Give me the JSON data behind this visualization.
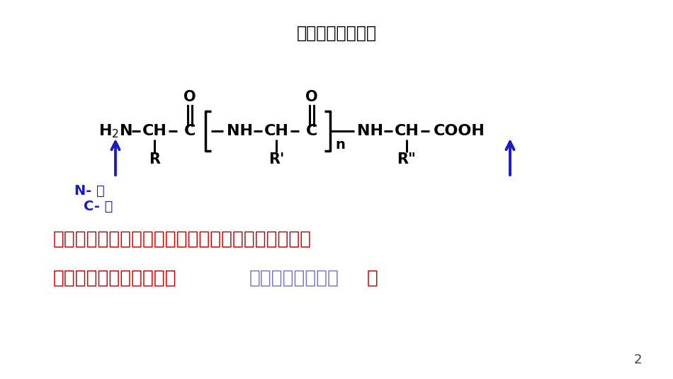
{
  "title": "多肽分子的表示：",
  "title_fontsize": 17,
  "bg_color": "#ffffff",
  "structure_color": "#000000",
  "blue_color": "#1a1acd",
  "red_color": "#cc0000",
  "link_color": "#7777bb",
  "n_terminal_label": "N- 端",
  "c_terminal_label": "C- 端",
  "paragraph1": "蛋白质分子中各个基本单元氨基酸都是以肽键连结起",
  "paragraph2_red": "来的，可以说蛋白质就是",
  "paragraph2_link": "分子量很大的多肽",
  "paragraph2_end": "。",
  "page_num": "2"
}
